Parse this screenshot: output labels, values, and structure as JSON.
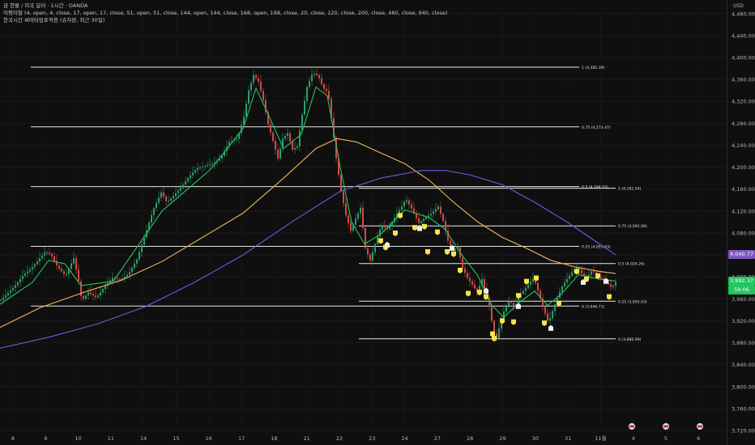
{
  "legend": {
    "line1": "금 현물 / 미국 달러 · 1시간 · OANDA",
    "line2": "이평이탈 (4, open, 4, close, 17, open, 17, close, 51, open, 51, close, 144, open, 144, close, 168, open, 168, close, 20, close, 120, close, 200, close, 480, close, 940, close)",
    "line3": "한국시간 써머타임표적용 (슈자판, 최근 30일)"
  },
  "price_scale": {
    "unit": "USD",
    "current_price_label": "4,040.77",
    "live_price_label": "3,992.37",
    "live_countdown": "59:06",
    "current_badge_color": "#7e57c2",
    "live_badge_color": "#22c55e"
  },
  "chart_data": {
    "type": "line",
    "ylim": [
      3720,
      4490
    ],
    "y_ticks": [
      {
        "value": 4480,
        "label": "4,480.00"
      },
      {
        "value": 4440,
        "label": "4,440.00"
      },
      {
        "value": 4400,
        "label": "4,400.00"
      },
      {
        "value": 4360,
        "label": "4,360.00"
      },
      {
        "value": 4320,
        "label": "4,320.00"
      },
      {
        "value": 4280,
        "label": "4,280.00"
      },
      {
        "value": 4240,
        "label": "4,240.00"
      },
      {
        "value": 4200,
        "label": "4,200.00"
      },
      {
        "value": 4160,
        "label": "4,160.00"
      },
      {
        "value": 4120,
        "label": "4,120.00"
      },
      {
        "value": 4080,
        "label": "4,080.00"
      },
      {
        "value": 4040,
        "label": "4,040.00"
      },
      {
        "value": 4000,
        "label": "4,000.00"
      },
      {
        "value": 3960,
        "label": "3,960.00"
      },
      {
        "value": 3920,
        "label": "3,920.00"
      },
      {
        "value": 3880,
        "label": "3,880.00"
      },
      {
        "value": 3840,
        "label": "3,840.00"
      },
      {
        "value": 3800,
        "label": "3,800.00"
      },
      {
        "value": 3760,
        "label": "3,760.00"
      },
      {
        "value": 3720,
        "label": "3,720.00"
      }
    ],
    "x_ticks": [
      "8",
      "9",
      "10",
      "11",
      "14",
      "15",
      "16",
      "17",
      "18",
      "21",
      "22",
      "23",
      "24",
      "27",
      "28",
      "29",
      "30",
      "31",
      "11월",
      "4",
      "5",
      "6"
    ],
    "price_series": [
      [
        0,
        3958
      ],
      [
        10,
        3972
      ],
      [
        20,
        3988
      ],
      [
        28,
        4004
      ],
      [
        35,
        4012
      ],
      [
        45,
        4028
      ],
      [
        55,
        4046
      ],
      [
        62,
        4040
      ],
      [
        70,
        4018
      ],
      [
        80,
        4002
      ],
      [
        90,
        4034
      ],
      [
        96,
        3992
      ],
      [
        100,
        3956
      ],
      [
        108,
        3972
      ],
      [
        118,
        3962
      ],
      [
        128,
        3982
      ],
      [
        138,
        3998
      ],
      [
        148,
        3995
      ],
      [
        158,
        4006
      ],
      [
        168,
        4032
      ],
      [
        178,
        4076
      ],
      [
        188,
        4122
      ],
      [
        198,
        4154
      ],
      [
        205,
        4136
      ],
      [
        212,
        4146
      ],
      [
        222,
        4162
      ],
      [
        232,
        4182
      ],
      [
        242,
        4198
      ],
      [
        252,
        4202
      ],
      [
        262,
        4206
      ],
      [
        272,
        4218
      ],
      [
        282,
        4246
      ],
      [
        292,
        4252
      ],
      [
        300,
        4292
      ],
      [
        306,
        4340
      ],
      [
        312,
        4368
      ],
      [
        318,
        4356
      ],
      [
        324,
        4322
      ],
      [
        330,
        4278
      ],
      [
        336,
        4248
      ],
      [
        342,
        4216
      ],
      [
        348,
        4252
      ],
      [
        354,
        4262
      ],
      [
        360,
        4232
      ],
      [
        366,
        4238
      ],
      [
        372,
        4296
      ],
      [
        378,
        4346
      ],
      [
        385,
        4372
      ],
      [
        392,
        4366
      ],
      [
        398,
        4344
      ],
      [
        404,
        4336
      ],
      [
        410,
        4266
      ],
      [
        414,
        4216
      ],
      [
        420,
        4156
      ],
      [
        426,
        4112
      ],
      [
        432,
        4084
      ],
      [
        438,
        4106
      ],
      [
        444,
        4126
      ],
      [
        450,
        4052
      ],
      [
        456,
        4030
      ],
      [
        464,
        4070
      ],
      [
        470,
        4094
      ],
      [
        478,
        4086
      ],
      [
        486,
        4108
      ],
      [
        494,
        4126
      ],
      [
        500,
        4142
      ],
      [
        508,
        4122
      ],
      [
        516,
        4098
      ],
      [
        524,
        4108
      ],
      [
        532,
        4116
      ],
      [
        540,
        4128
      ],
      [
        546,
        4102
      ],
      [
        552,
        4066
      ],
      [
        558,
        4048
      ],
      [
        564,
        4054
      ],
      [
        570,
        4016
      ],
      [
        576,
        3998
      ],
      [
        582,
        3986
      ],
      [
        588,
        3972
      ],
      [
        594,
        3996
      ],
      [
        600,
        3962
      ],
      [
        604,
        3940
      ],
      [
        608,
        3900
      ],
      [
        612,
        3888
      ],
      [
        616,
        3912
      ],
      [
        622,
        3942
      ],
      [
        628,
        3958
      ],
      [
        634,
        3942
      ],
      [
        640,
        3966
      ],
      [
        646,
        3976
      ],
      [
        652,
        3988
      ],
      [
        658,
        3998
      ],
      [
        664,
        3970
      ],
      [
        670,
        3942
      ],
      [
        676,
        3916
      ],
      [
        682,
        3942
      ],
      [
        688,
        3966
      ],
      [
        694,
        3986
      ],
      [
        700,
        3998
      ],
      [
        706,
        4010
      ],
      [
        712,
        4018
      ],
      [
        718,
        4004
      ],
      [
        724,
        4000
      ],
      [
        730,
        4012
      ],
      [
        736,
        4002
      ],
      [
        742,
        3996
      ],
      [
        748,
        3990
      ],
      [
        754,
        3980
      ],
      [
        760,
        3992
      ]
    ],
    "series": [
      {
        "color": "#22c55e",
        "values": [
          [
            0,
            3950
          ],
          [
            40,
            3990
          ],
          [
            60,
            4030
          ],
          [
            80,
            4024
          ],
          [
            100,
            3984
          ],
          [
            140,
            3992
          ],
          [
            200,
            4120
          ],
          [
            260,
            4196
          ],
          [
            300,
            4270
          ],
          [
            316,
            4344
          ],
          [
            330,
            4300
          ],
          [
            350,
            4234
          ],
          [
            372,
            4260
          ],
          [
            390,
            4346
          ],
          [
            404,
            4330
          ],
          [
            420,
            4200
          ],
          [
            434,
            4100
          ],
          [
            450,
            4060
          ],
          [
            470,
            4078
          ],
          [
            500,
            4122
          ],
          [
            530,
            4108
          ],
          [
            550,
            4086
          ],
          [
            570,
            4040
          ],
          [
            590,
            4002
          ],
          [
            606,
            3950
          ],
          [
            622,
            3926
          ],
          [
            640,
            3952
          ],
          [
            660,
            3974
          ],
          [
            676,
            3948
          ],
          [
            694,
            3970
          ],
          [
            714,
            4004
          ],
          [
            740,
            3996
          ],
          [
            760,
            3992
          ]
        ]
      },
      {
        "color": "#f0b85a",
        "values": [
          [
            0,
            3908
          ],
          [
            50,
            3944
          ],
          [
            100,
            3970
          ],
          [
            150,
            3994
          ],
          [
            200,
            4028
          ],
          [
            250,
            4072
          ],
          [
            300,
            4116
          ],
          [
            350,
            4180
          ],
          [
            390,
            4234
          ],
          [
            416,
            4252
          ],
          [
            440,
            4246
          ],
          [
            470,
            4226
          ],
          [
            500,
            4206
          ],
          [
            530,
            4176
          ],
          [
            560,
            4136
          ],
          [
            590,
            4100
          ],
          [
            620,
            4072
          ],
          [
            650,
            4052
          ],
          [
            680,
            4030
          ],
          [
            710,
            4018
          ],
          [
            740,
            4010
          ],
          [
            760,
            4006
          ]
        ]
      },
      {
        "color": "#6a5ce0",
        "values": [
          [
            0,
            3870
          ],
          [
            60,
            3890
          ],
          [
            120,
            3914
          ],
          [
            180,
            3946
          ],
          [
            240,
            3990
          ],
          [
            300,
            4040
          ],
          [
            360,
            4100
          ],
          [
            420,
            4156
          ],
          [
            470,
            4180
          ],
          [
            520,
            4194
          ],
          [
            550,
            4194
          ],
          [
            580,
            4186
          ],
          [
            620,
            4168
          ],
          [
            660,
            4136
          ],
          [
            700,
            4100
          ],
          [
            740,
            4060
          ],
          [
            760,
            4040
          ]
        ]
      }
    ],
    "fib_lines": [
      {
        "value": 4382.39,
        "label": "1 (4,382.39)"
      },
      {
        "value": 4273.47,
        "label": "0.75 (4,273.47)"
      },
      {
        "value": 4164.55,
        "label": "0.5 (4,164.55)"
      },
      {
        "value": 4055.63,
        "label": "0.25 (4,055.63)"
      },
      {
        "value": 3946.71,
        "label": "0 (3,946.71)"
      },
      {
        "value": 4161.54,
        "label": "1 (4,161.54)"
      },
      {
        "value": 4092.9,
        "label": "0.75 (4,092.90)"
      },
      {
        "value": 4024.26,
        "label": "0.5 (4,024.26)"
      },
      {
        "value": 3955.63,
        "label": "0.25 (3,955.63)"
      },
      {
        "value": 3886.99,
        "label": "0 (3,886.99)"
      }
    ],
    "yellow_markers": [
      [
        470,
        4066
      ],
      [
        476,
        4054
      ],
      [
        488,
        4080
      ],
      [
        494,
        4112
      ],
      [
        512,
        4090
      ],
      [
        524,
        4092
      ],
      [
        528,
        4046
      ],
      [
        540,
        4082
      ],
      [
        552,
        4046
      ],
      [
        560,
        4042
      ],
      [
        568,
        4012
      ],
      [
        578,
        3970
      ],
      [
        592,
        3972
      ],
      [
        600,
        3964
      ],
      [
        608,
        3896
      ],
      [
        610,
        3888
      ],
      [
        620,
        3920
      ],
      [
        634,
        3918
      ],
      [
        640,
        3966
      ],
      [
        650,
        3992
      ],
      [
        662,
        3998
      ],
      [
        672,
        3916
      ],
      [
        690,
        3952
      ],
      [
        712,
        4010
      ],
      [
        724,
        3996
      ],
      [
        738,
        4002
      ],
      [
        752,
        3964
      ]
    ],
    "white_markers": [
      [
        478,
        4058
      ],
      [
        518,
        4088
      ],
      [
        558,
        4052
      ],
      [
        600,
        3974
      ],
      [
        640,
        3946
      ],
      [
        680,
        3906
      ],
      [
        720,
        3990
      ],
      [
        748,
        3992
      ]
    ],
    "flag_markers": [
      [
        780,
        3740
      ],
      [
        822,
        3740
      ],
      [
        864,
        3740
      ]
    ]
  }
}
